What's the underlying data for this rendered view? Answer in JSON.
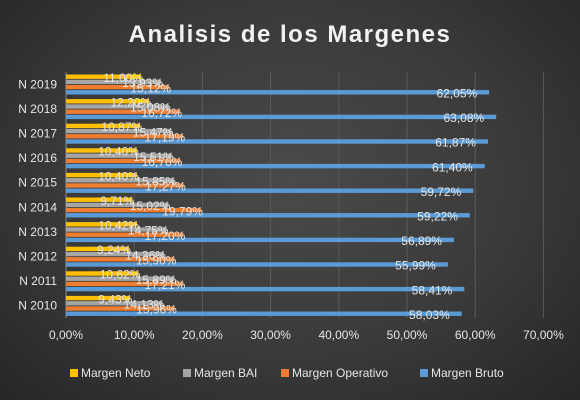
{
  "chart_data": {
    "type": "bar",
    "orientation": "horizontal",
    "title": "Analisis de los Margenes",
    "categories": [
      "N 2010",
      "N 2011",
      "N 2012",
      "N 2013",
      "N 2014",
      "N 2015",
      "N 2016",
      "N 2017",
      "N 2018",
      "N 2019"
    ],
    "series": [
      {
        "name": "Margen Neto",
        "color": "#ffc000",
        "values": [
          9.43,
          10.62,
          9.24,
          10.42,
          9.71,
          10.4,
          10.4,
          10.87,
          12.2,
          11.0
        ],
        "labels": [
          "9,43%",
          "10,62%",
          "9,24%",
          "10,42%",
          "9,71%",
          "10,40%",
          "10,40%",
          "10,87%",
          "12,20%",
          "11,00%"
        ]
      },
      {
        "name": "Margen BAI",
        "color": "#a5a5a5",
        "values": [
          14.13,
          15.89,
          14.36,
          14.75,
          15.02,
          15.85,
          15.51,
          15.47,
          15.08,
          13.93
        ],
        "labels": [
          "14,13%",
          "15,89%",
          "14,36%",
          "14,75%",
          "15,02%",
          "15,85%",
          "15,51%",
          "15,47%",
          "15,08%",
          "13,93%"
        ]
      },
      {
        "name": "Margen Operativo",
        "color": "#ed7d31",
        "values": [
          15.96,
          17.21,
          15.9,
          17.2,
          19.79,
          17.27,
          16.76,
          17.19,
          16.72,
          15.12
        ],
        "labels": [
          "15,96%",
          "17,21%",
          "15,90%",
          "17,20%",
          "19,79%",
          "17,27%",
          "16,76%",
          "17,19%",
          "16,72%",
          "15,12%"
        ]
      },
      {
        "name": "Margen Bruto",
        "color": "#5b9bd5",
        "values": [
          58.03,
          58.41,
          55.99,
          56.89,
          59.22,
          59.72,
          61.4,
          61.87,
          63.08,
          62.05
        ],
        "labels": [
          "58,03%",
          "58,41%",
          "55,99%",
          "56,89%",
          "59,22%",
          "59,72%",
          "61,40%",
          "61,87%",
          "63,08%",
          "62,05%"
        ]
      }
    ],
    "x_ticks": [
      "0,00%",
      "10,00%",
      "20,00%",
      "30,00%",
      "40,00%",
      "50,00%",
      "60,00%",
      "70,00%"
    ],
    "xlim": [
      0,
      70
    ],
    "grid": true,
    "legend": "bottom"
  }
}
